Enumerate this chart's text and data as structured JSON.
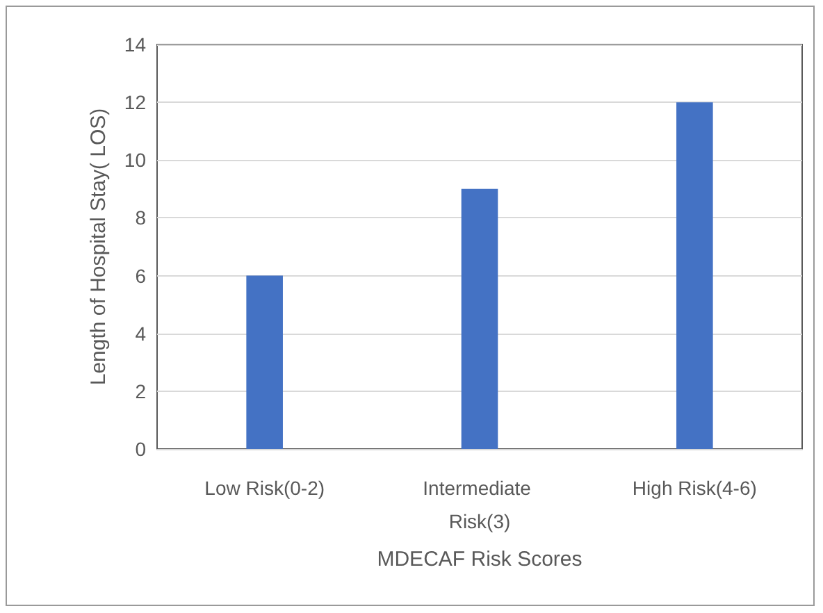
{
  "chart_data": {
    "type": "bar",
    "xlabel": "MDECAF Risk Scores",
    "ylabel": "Length of Hospital Stay( LOS)",
    "categories": [
      "Low Risk(0-2)",
      "Intermediate Risk(3)",
      "High Risk(4-6)"
    ],
    "values": [
      6,
      9,
      12
    ],
    "color": "#4472c4",
    "ylim": [
      0,
      14
    ],
    "yticks": [
      0,
      2,
      4,
      6,
      8,
      10,
      12,
      14
    ],
    "grid": "y"
  }
}
